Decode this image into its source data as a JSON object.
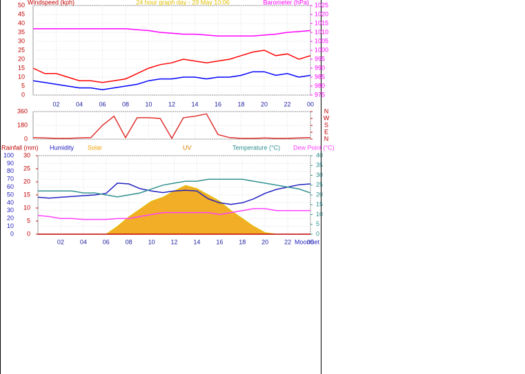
{
  "chart_data": [
    {
      "type": "line",
      "title": "24 hour graph day - 29 May 10:06",
      "ylabel": "Windspeed (kph)",
      "y2label": "Barometer (hPa)",
      "x": [
        0,
        1,
        2,
        3,
        4,
        5,
        6,
        7,
        8,
        9,
        10,
        11,
        12,
        13,
        14,
        15,
        16,
        17,
        18,
        19,
        20,
        21,
        22,
        23,
        24
      ],
      "xlim": [
        0,
        24
      ],
      "xticks": [
        {
          "value": 2,
          "label": "02"
        },
        {
          "value": 4,
          "label": "04"
        },
        {
          "value": 6,
          "label": "06"
        },
        {
          "value": 8,
          "label": "08"
        },
        10,
        12,
        14,
        16,
        18,
        20,
        22,
        {
          "value": 24,
          "label": "00"
        }
      ],
      "ylim": [
        0,
        50
      ],
      "yticks": [
        0,
        5,
        10,
        15,
        20,
        25,
        30,
        35,
        40,
        45,
        50
      ],
      "y2lim": [
        975,
        1025
      ],
      "y2ticks": [
        975,
        980,
        985,
        990,
        995,
        1000,
        1005,
        1010,
        1015,
        1020,
        1025
      ],
      "grid": true,
      "series": [
        {
          "color": "#ff0000",
          "values": [
            15,
            12,
            12,
            10,
            8,
            8,
            7,
            8,
            9,
            12,
            15,
            17,
            18,
            20,
            19,
            18,
            19,
            20,
            22,
            24,
            25,
            22,
            23,
            20,
            22
          ]
        },
        {
          "color": "#0000ff",
          "values": [
            8,
            7,
            6,
            5,
            4,
            4,
            3,
            4,
            5,
            6,
            8,
            9,
            9,
            10,
            10,
            9,
            10,
            10,
            11,
            13,
            13,
            11,
            12,
            10,
            11
          ]
        },
        {
          "color": "#ff00ff",
          "axis": "y2",
          "values": [
            1012,
            1012,
            1012,
            1012,
            1012,
            1012,
            1012,
            1012,
            1012,
            1011.5,
            1011,
            1010,
            1009.5,
            1009,
            1009,
            1008.5,
            1008,
            1008,
            1008,
            1008,
            1008.5,
            1009,
            1010,
            1010.5,
            1011
          ]
        }
      ]
    },
    {
      "type": "line",
      "x": [
        0,
        1,
        2,
        3,
        4,
        5,
        6,
        7,
        8,
        9,
        10,
        11,
        12,
        13,
        14,
        15,
        16,
        17,
        18,
        19,
        20,
        21,
        22,
        23,
        24
      ],
      "xlim": [
        0,
        24
      ],
      "xticks": [
        2,
        4,
        6,
        8,
        10,
        12,
        14,
        16,
        18,
        20,
        22,
        24
      ],
      "ylim": [
        0,
        360
      ],
      "yticks": [
        0,
        180,
        360
      ],
      "y2lim": [
        0,
        360
      ],
      "y2ticks": [
        {
          "value": 360,
          "label": "N"
        },
        {
          "value": 270,
          "label": "W"
        },
        {
          "value": 180,
          "label": "S"
        },
        {
          "value": 90,
          "label": "E"
        },
        {
          "value": 0,
          "label": "N"
        }
      ],
      "grid": true,
      "series": [
        {
          "color": "#e03030",
          "values": [
            20,
            15,
            10,
            10,
            15,
            20,
            180,
            300,
            20,
            280,
            280,
            270,
            10,
            280,
            300,
            330,
            60,
            20,
            10,
            10,
            15,
            10,
            10,
            15,
            20
          ]
        }
      ]
    },
    {
      "type": "line",
      "ylabel": "Rainfall (mm)",
      "annotations": [
        "UV",
        "MoonSet"
      ],
      "x": [
        0,
        1,
        2,
        3,
        4,
        5,
        6,
        7,
        8,
        9,
        10,
        11,
        12,
        13,
        14,
        15,
        16,
        17,
        18,
        19,
        20,
        21,
        22,
        23,
        24
      ],
      "xlim": [
        0,
        24
      ],
      "xticks": [
        {
          "value": 2,
          "label": "02"
        },
        {
          "value": 4,
          "label": "04"
        },
        {
          "value": 6,
          "label": "06"
        },
        {
          "value": 8,
          "label": "08"
        },
        10,
        12,
        14,
        16,
        18,
        20,
        22,
        {
          "value": 24,
          "label": "00"
        }
      ],
      "ylim": [
        0,
        100
      ],
      "yticks": [
        0,
        10,
        20,
        30,
        40,
        50,
        60,
        70,
        80,
        90,
        100
      ],
      "y3lim": [
        0,
        30
      ],
      "y3ticks": [
        0,
        5,
        10,
        15,
        20,
        25,
        30
      ],
      "y2lim": [
        0,
        40
      ],
      "y2ticks": [
        0,
        5,
        10,
        15,
        20,
        25,
        30,
        35,
        40
      ],
      "grid": true,
      "series": [
        {
          "name": "Solar",
          "color": "#f0a000",
          "style": "area",
          "values": [
            0,
            0,
            0,
            0,
            0,
            0,
            0,
            10,
            22,
            32,
            42,
            47,
            55,
            62,
            58,
            50,
            42,
            30,
            20,
            10,
            2,
            0,
            0,
            0,
            0
          ]
        },
        {
          "name": "Rainfall (mm)",
          "color": "#c00000",
          "axis": "y3",
          "values": [
            0,
            0,
            0,
            0,
            0,
            0,
            0,
            0,
            0,
            0,
            0,
            0,
            0,
            0,
            0,
            0,
            0,
            0,
            0,
            0,
            0,
            0,
            0,
            0,
            0
          ]
        },
        {
          "name": "Humidity",
          "color": "#2020c0",
          "values": [
            47,
            46,
            47,
            48,
            49,
            50,
            52,
            65,
            64,
            58,
            55,
            53,
            55,
            56,
            55,
            45,
            40,
            38,
            40,
            45,
            52,
            57,
            60,
            63,
            64
          ]
        },
        {
          "name": "Temperature (°C)",
          "color": "#309090",
          "axis": "y2",
          "values": [
            22,
            22,
            22,
            22,
            21,
            21,
            20,
            19,
            20,
            21,
            23,
            25,
            26,
            27,
            27,
            28,
            28,
            28,
            28,
            27,
            26,
            25,
            24,
            23,
            21
          ]
        },
        {
          "name": "Dew Point (°C)",
          "color": "#ff40ff",
          "axis": "y2",
          "values": [
            9.5,
            9,
            8,
            8,
            7.5,
            7.5,
            7.5,
            8,
            8,
            9,
            10,
            11,
            11,
            11,
            11,
            11,
            10,
            11,
            12,
            13,
            13,
            12,
            12,
            12,
            12
          ]
        }
      ]
    }
  ]
}
